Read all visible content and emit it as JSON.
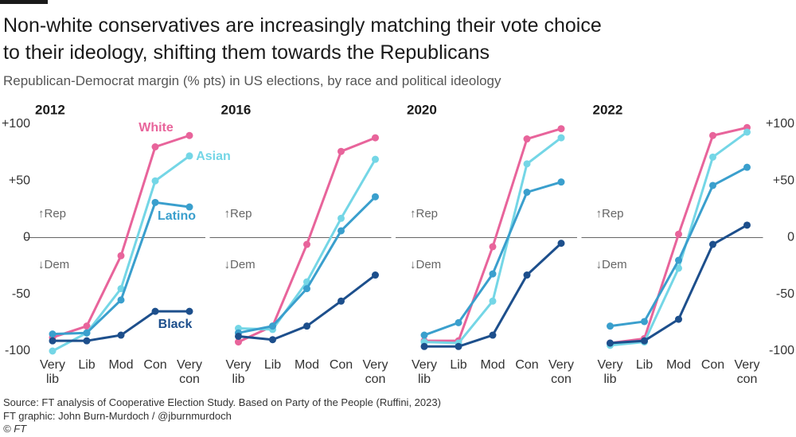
{
  "title": [
    "Non-white conservatives are increasingly matching their vote choice",
    "to their ideology, shifting them towards the Republicans"
  ],
  "subtitle": "Republican-Democrat margin (% pts) in US elections, by race and political ideology",
  "footer": [
    "Source: FT analysis of Cooperative Election Study. Based on Party of the People (Ruffini, 2023)",
    "FT graphic: John Burn-Murdoch / @jburnmurdoch",
    "© FT"
  ],
  "chart_data": [
    {
      "type": "line",
      "title": "2012",
      "categories": [
        "Very lib",
        "Lib",
        "Mod",
        "Con",
        "Very con"
      ],
      "ylim": [
        -100,
        100
      ],
      "yticks": [
        {
          "value": 100,
          "label": "+100"
        },
        {
          "value": 50,
          "label": "+50"
        },
        0,
        -50,
        -100
      ],
      "yaxis_position": "left",
      "annotations": [
        "↑Rep",
        "↓Dem"
      ],
      "series": [
        {
          "name": "White",
          "color": "#e8649b",
          "values": [
            -88,
            -78,
            -16,
            80,
            90
          ]
        },
        {
          "name": "Asian",
          "color": "#74d6e6",
          "values": [
            -100,
            -84,
            -45,
            50,
            72
          ]
        },
        {
          "name": "Latino",
          "color": "#3a9fcd",
          "values": [
            -85,
            -84,
            -55,
            31,
            27
          ]
        },
        {
          "name": "Black",
          "color": "#1d4f8c",
          "values": [
            -91,
            -91,
            -86,
            -65,
            -65
          ]
        }
      ]
    },
    {
      "type": "line",
      "title": "2016",
      "categories": [
        "Very lib",
        "Lib",
        "Mod",
        "Con",
        "Very con"
      ],
      "ylim": [
        -100,
        100
      ],
      "annotations": [
        "↑Rep",
        "↓Dem"
      ],
      "series": [
        {
          "color": "#e8649b",
          "values": [
            -92,
            -78,
            -6,
            76,
            88
          ]
        },
        {
          "color": "#74d6e6",
          "values": [
            -80,
            -81,
            -39,
            17,
            69
          ]
        },
        {
          "color": "#3a9fcd",
          "values": [
            -84,
            -78,
            -45,
            6,
            36
          ]
        },
        {
          "color": "#1d4f8c",
          "values": [
            -87,
            -90,
            -78,
            -56,
            -33
          ]
        }
      ]
    },
    {
      "type": "line",
      "title": "2020",
      "categories": [
        "Very lib",
        "Lib",
        "Mod",
        "Con",
        "Very con"
      ],
      "ylim": [
        -100,
        100
      ],
      "annotations": [
        "↑Rep",
        "↓Dem"
      ],
      "series": [
        {
          "color": "#e8649b",
          "values": [
            -91,
            -91,
            -8,
            87,
            96
          ]
        },
        {
          "color": "#74d6e6",
          "values": [
            -92,
            -93,
            -56,
            65,
            88
          ]
        },
        {
          "color": "#3a9fcd",
          "values": [
            -86,
            -75,
            -32,
            40,
            49
          ]
        },
        {
          "color": "#1d4f8c",
          "values": [
            -96,
            -96,
            -86,
            -33,
            -5
          ]
        }
      ]
    },
    {
      "type": "line",
      "title": "2022",
      "categories": [
        "Very lib",
        "Lib",
        "Mod",
        "Con",
        "Very con"
      ],
      "ylim": [
        -100,
        100
      ],
      "yticks": [
        {
          "value": 100,
          "label": "+100"
        },
        {
          "value": 50,
          "label": "+50"
        },
        0,
        -50,
        -100
      ],
      "yaxis_position": "right",
      "annotations": [
        "↑Rep",
        "↓Dem"
      ],
      "series": [
        {
          "color": "#e8649b",
          "values": [
            -93,
            -89,
            3,
            90,
            97
          ]
        },
        {
          "color": "#74d6e6",
          "values": [
            -95,
            -92,
            -27,
            71,
            93
          ]
        },
        {
          "color": "#3a9fcd",
          "values": [
            -78,
            -74,
            -20,
            46,
            62
          ]
        },
        {
          "color": "#1d4f8c",
          "values": [
            -93,
            -91,
            -72,
            -6,
            11
          ]
        }
      ]
    }
  ]
}
